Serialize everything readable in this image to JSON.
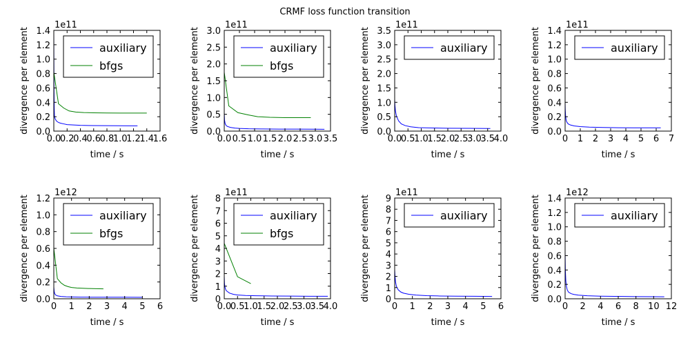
{
  "figure": {
    "title": "CRMF loss function transition"
  },
  "colors": {
    "auxiliary": "#0000ff",
    "bfgs": "#008000"
  },
  "chart_data": [
    {
      "type": "line",
      "xlabel": "time / s",
      "ylabel": "divergence per element",
      "y_scale_label": "1e11",
      "xlim": [
        0,
        1.6
      ],
      "ylim": [
        0,
        1.4
      ],
      "xticks": [
        0.0,
        0.2,
        0.4,
        0.6,
        0.8,
        1.0,
        1.2,
        1.4,
        1.6
      ],
      "xtick_labels": [
        "0.0",
        "0.2",
        "0.4",
        "0.6",
        "0.8",
        "1.0",
        "1.2",
        "1.4",
        "1.6"
      ],
      "yticks": [
        0.0,
        0.2,
        0.4,
        0.6,
        0.8,
        1.0,
        1.2,
        1.4
      ],
      "ytick_labels": [
        "0.0",
        "0.2",
        "0.4",
        "0.6",
        "0.8",
        "1.0",
        "1.2",
        "1.4"
      ],
      "legend": {
        "placement": "top-right",
        "entries": [
          "auxiliary",
          "bfgs"
        ]
      },
      "series": [
        {
          "name": "auxiliary",
          "color": "#0000ff",
          "x": [
            0,
            0.003,
            0.006,
            0.01,
            0.02,
            0.04,
            0.07,
            0.1,
            0.15,
            0.2,
            0.3,
            0.4,
            0.6,
            0.8,
            1.0,
            1.2,
            1.26
          ],
          "y": [
            1.35,
            0.6,
            0.32,
            0.2,
            0.17,
            0.14,
            0.12,
            0.11,
            0.1,
            0.09,
            0.085,
            0.08,
            0.077,
            0.075,
            0.074,
            0.073,
            0.073
          ]
        },
        {
          "name": "bfgs",
          "color": "#008000",
          "x": [
            0,
            0.07,
            0.15,
            0.23,
            0.33,
            0.45,
            0.6,
            0.8,
            1.0,
            1.2,
            1.4
          ],
          "y": [
            0.82,
            0.38,
            0.32,
            0.28,
            0.265,
            0.258,
            0.254,
            0.252,
            0.251,
            0.25,
            0.25
          ]
        }
      ]
    },
    {
      "type": "line",
      "xlabel": "time / s",
      "ylabel": "divergence per element",
      "y_scale_label": "1e11",
      "xlim": [
        0,
        3.5
      ],
      "ylim": [
        0,
        3.0
      ],
      "xticks": [
        0.0,
        0.5,
        1.0,
        1.5,
        2.0,
        2.5,
        3.0,
        3.5
      ],
      "xtick_labels": [
        "0.0",
        "0.5",
        "1.0",
        "1.5",
        "2.0",
        "2.5",
        "3.0",
        "3.5"
      ],
      "yticks": [
        0.0,
        0.5,
        1.0,
        1.5,
        2.0,
        2.5,
        3.0
      ],
      "ytick_labels": [
        "0.0",
        "0.5",
        "1.0",
        "1.5",
        "2.0",
        "2.5",
        "3.0"
      ],
      "legend": {
        "placement": "top-right",
        "entries": [
          "auxiliary",
          "bfgs"
        ]
      },
      "series": [
        {
          "name": "auxiliary",
          "color": "#0000ff",
          "x": [
            0,
            0.01,
            0.03,
            0.06,
            0.1,
            0.2,
            0.35,
            0.5,
            0.8,
            1.2,
            1.8,
            2.4,
            3.0,
            3.3
          ],
          "y": [
            0.55,
            0.33,
            0.22,
            0.17,
            0.14,
            0.11,
            0.09,
            0.08,
            0.07,
            0.065,
            0.06,
            0.058,
            0.056,
            0.055
          ]
        },
        {
          "name": "bfgs",
          "color": "#008000",
          "x": [
            0,
            0.15,
            0.45,
            0.8,
            1.1,
            1.5,
            2.0,
            2.5,
            2.85
          ],
          "y": [
            1.75,
            0.75,
            0.55,
            0.48,
            0.43,
            0.41,
            0.4,
            0.4,
            0.4
          ]
        }
      ]
    },
    {
      "type": "line",
      "xlabel": "time / s",
      "ylabel": "divergence per element",
      "y_scale_label": "1e11",
      "xlim": [
        0,
        4.0
      ],
      "ylim": [
        0,
        3.5
      ],
      "xticks": [
        0.0,
        0.5,
        1.0,
        1.5,
        2.0,
        2.5,
        3.0,
        3.5,
        4.0
      ],
      "xtick_labels": [
        "0.0",
        "0.5",
        "1.0",
        "1.5",
        "2.0",
        "2.5",
        "3.0",
        "3.5",
        "4.0"
      ],
      "yticks": [
        0.0,
        0.5,
        1.0,
        1.5,
        2.0,
        2.5,
        3.0,
        3.5
      ],
      "ytick_labels": [
        "0.0",
        "0.5",
        "1.0",
        "1.5",
        "2.0",
        "2.5",
        "3.0",
        "3.5"
      ],
      "legend": {
        "placement": "top-right",
        "entries": [
          "auxiliary"
        ]
      },
      "series": [
        {
          "name": "auxiliary",
          "color": "#0000ff",
          "x": [
            0,
            0.01,
            0.03,
            0.06,
            0.1,
            0.15,
            0.25,
            0.4,
            0.6,
            0.9,
            1.3,
            2.0,
            2.8,
            3.6
          ],
          "y": [
            1.1,
            0.9,
            0.7,
            0.55,
            0.45,
            0.35,
            0.25,
            0.19,
            0.15,
            0.12,
            0.11,
            0.1,
            0.095,
            0.09
          ]
        }
      ]
    },
    {
      "type": "line",
      "xlabel": "time / s",
      "ylabel": "divergence per element",
      "y_scale_label": "1e11",
      "xlim": [
        0,
        7
      ],
      "ylim": [
        0,
        1.4
      ],
      "xticks": [
        0,
        1,
        2,
        3,
        4,
        5,
        6,
        7
      ],
      "xtick_labels": [
        "0",
        "1",
        "2",
        "3",
        "4",
        "5",
        "6",
        "7"
      ],
      "yticks": [
        0.0,
        0.2,
        0.4,
        0.6,
        0.8,
        1.0,
        1.2,
        1.4
      ],
      "ytick_labels": [
        "0.0",
        "0.2",
        "0.4",
        "0.6",
        "0.8",
        "1.0",
        "1.2",
        "1.4"
      ],
      "legend": {
        "placement": "top-right",
        "entries": [
          "auxiliary"
        ]
      },
      "series": [
        {
          "name": "auxiliary",
          "color": "#0000ff",
          "x": [
            0,
            0.01,
            0.03,
            0.06,
            0.1,
            0.2,
            0.35,
            0.6,
            1.0,
            1.6,
            2.5,
            3.5,
            4.5,
            5.5,
            6.3
          ],
          "y": [
            0.4,
            0.3,
            0.22,
            0.16,
            0.13,
            0.1,
            0.085,
            0.072,
            0.062,
            0.055,
            0.05,
            0.047,
            0.046,
            0.045,
            0.045
          ]
        }
      ]
    },
    {
      "type": "line",
      "xlabel": "time / s",
      "ylabel": "divergence per element",
      "y_scale_label": "1e12",
      "xlim": [
        0,
        6
      ],
      "ylim": [
        0,
        1.2
      ],
      "xticks": [
        0,
        1,
        2,
        3,
        4,
        5,
        6
      ],
      "xtick_labels": [
        "0",
        "1",
        "2",
        "3",
        "4",
        "5",
        "6"
      ],
      "yticks": [
        0.0,
        0.2,
        0.4,
        0.6,
        0.8,
        1.0,
        1.2
      ],
      "ytick_labels": [
        "0.0",
        "0.2",
        "0.4",
        "0.6",
        "0.8",
        "1.0",
        "1.2"
      ],
      "legend": {
        "placement": "top-right",
        "entries": [
          "auxiliary",
          "bfgs"
        ]
      },
      "series": [
        {
          "name": "auxiliary",
          "color": "#0000ff",
          "x": [
            0,
            0.02,
            0.05,
            0.1,
            0.2,
            0.4,
            0.7,
            1.0,
            1.5,
            2.0,
            3.0,
            4.0,
            5.0
          ],
          "y": [
            0.14,
            0.09,
            0.06,
            0.045,
            0.035,
            0.028,
            0.024,
            0.022,
            0.02,
            0.019,
            0.018,
            0.018,
            0.017
          ]
        },
        {
          "name": "bfgs",
          "color": "#008000",
          "x": [
            0,
            0.2,
            0.4,
            0.6,
            0.8,
            1.0,
            1.3,
            1.6,
            2.0,
            2.4,
            2.8
          ],
          "y": [
            0.6,
            0.24,
            0.19,
            0.16,
            0.145,
            0.135,
            0.128,
            0.125,
            0.122,
            0.12,
            0.118
          ]
        }
      ]
    },
    {
      "type": "line",
      "xlabel": "time / s",
      "ylabel": "divergence per element",
      "y_scale_label": "1e11",
      "xlim": [
        0,
        4.0
      ],
      "ylim": [
        0,
        8
      ],
      "xticks": [
        0.0,
        0.5,
        1.0,
        1.5,
        2.0,
        2.5,
        3.0,
        3.5,
        4.0
      ],
      "xtick_labels": [
        "0.0",
        "0.5",
        "1.0",
        "1.5",
        "2.0",
        "2.5",
        "3.0",
        "3.5",
        "4.0"
      ],
      "yticks": [
        0,
        1,
        2,
        3,
        4,
        5,
        6,
        7,
        8
      ],
      "ytick_labels": [
        "0",
        "1",
        "2",
        "3",
        "4",
        "5",
        "6",
        "7",
        "8"
      ],
      "legend": {
        "placement": "top-right",
        "entries": [
          "auxiliary",
          "bfgs"
        ]
      },
      "series": [
        {
          "name": "auxiliary",
          "color": "#0000ff",
          "x": [
            0,
            0.01,
            0.03,
            0.06,
            0.1,
            0.2,
            0.35,
            0.5,
            0.8,
            1.2,
            1.8,
            2.5,
            3.2,
            3.9
          ],
          "y": [
            1.8,
            1.2,
            0.9,
            0.7,
            0.6,
            0.45,
            0.35,
            0.3,
            0.26,
            0.24,
            0.22,
            0.21,
            0.2,
            0.2
          ]
        },
        {
          "name": "bfgs",
          "color": "#008000",
          "x": [
            0,
            0.5,
            1.0
          ],
          "y": [
            4.4,
            1.75,
            1.2
          ]
        }
      ]
    },
    {
      "type": "line",
      "xlabel": "time / s",
      "ylabel": "divergence per element",
      "y_scale_label": "1e11",
      "xlim": [
        0,
        6
      ],
      "ylim": [
        0,
        9
      ],
      "xticks": [
        0,
        1,
        2,
        3,
        4,
        5,
        6
      ],
      "xtick_labels": [
        "0",
        "1",
        "2",
        "3",
        "4",
        "5",
        "6"
      ],
      "yticks": [
        0,
        1,
        2,
        3,
        4,
        5,
        6,
        7,
        8,
        9
      ],
      "ytick_labels": [
        "0",
        "1",
        "2",
        "3",
        "4",
        "5",
        "6",
        "7",
        "8",
        "9"
      ],
      "legend": {
        "placement": "top-right",
        "entries": [
          "auxiliary"
        ]
      },
      "series": [
        {
          "name": "auxiliary",
          "color": "#0000ff",
          "x": [
            0,
            0.02,
            0.05,
            0.1,
            0.2,
            0.35,
            0.5,
            0.8,
            1.2,
            1.8,
            2.5,
            3.5,
            4.5,
            5.5
          ],
          "y": [
            2.6,
            2.0,
            1.5,
            1.1,
            0.8,
            0.6,
            0.5,
            0.4,
            0.33,
            0.28,
            0.25,
            0.23,
            0.22,
            0.21
          ]
        }
      ]
    },
    {
      "type": "line",
      "xlabel": "time / s",
      "ylabel": "divergence per element",
      "y_scale_label": "1e12",
      "xlim": [
        0,
        12
      ],
      "ylim": [
        0,
        1.4
      ],
      "xticks": [
        0,
        2,
        4,
        6,
        8,
        10,
        12
      ],
      "xtick_labels": [
        "0",
        "2",
        "4",
        "6",
        "8",
        "10",
        "12"
      ],
      "yticks": [
        0.0,
        0.2,
        0.4,
        0.6,
        0.8,
        1.0,
        1.2,
        1.4
      ],
      "ytick_labels": [
        "0.0",
        "0.2",
        "0.4",
        "0.6",
        "0.8",
        "1.0",
        "1.2",
        "1.4"
      ],
      "legend": {
        "placement": "top-right",
        "entries": [
          "auxiliary"
        ]
      },
      "series": [
        {
          "name": "auxiliary",
          "color": "#0000ff",
          "x": [
            0,
            0.03,
            0.08,
            0.15,
            0.25,
            0.4,
            0.7,
            1.0,
            1.5,
            2.5,
            4.0,
            6.0,
            8.0,
            10.0,
            11.2
          ],
          "y": [
            0.65,
            0.4,
            0.25,
            0.17,
            0.12,
            0.09,
            0.07,
            0.06,
            0.05,
            0.042,
            0.036,
            0.033,
            0.03,
            0.029,
            0.028
          ]
        }
      ]
    }
  ]
}
